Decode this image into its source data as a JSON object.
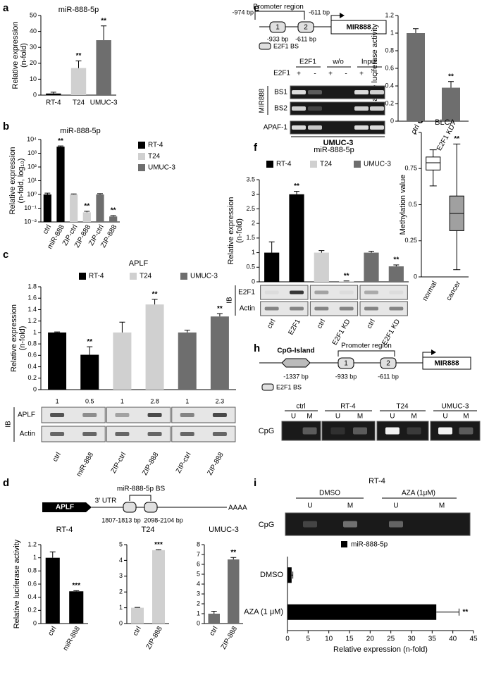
{
  "panels": [
    "a",
    "b",
    "c",
    "d",
    "e",
    "f",
    "g",
    "h",
    "i"
  ],
  "chart_data": [
    {
      "type": "bar",
      "title": "miR-888-5p",
      "ylabel": [
        "Relative expression",
        "(n-fold)"
      ],
      "categories": [
        "RT-4",
        "T24",
        "UMUC-3"
      ],
      "values": [
        1,
        17,
        34.5
      ],
      "errors": [
        0.8,
        4.5,
        9
      ],
      "significance": [
        null,
        "**",
        "**"
      ],
      "colors": [
        "#000000",
        "#d0d0d0",
        "#6e6e6e"
      ],
      "ylim": [
        0,
        50
      ],
      "yticks": [
        0,
        10,
        20,
        30,
        40,
        50
      ]
    },
    {
      "type": "bar",
      "title": "miR-888-5p",
      "ylabel": [
        "Relative expression",
        "(n-fold, log₁₀)"
      ],
      "log_scale": true,
      "categories": [
        "ctrl",
        "miR-888",
        "ZIP-ctrl",
        "ZIP-888",
        "ZIP-ctrl",
        "ZIP-888"
      ],
      "series": [
        {
          "name": "RT-4",
          "color": "#000000",
          "values": [
            1,
            3000,
            null,
            null,
            null,
            null
          ],
          "errors": [
            0.25,
            400,
            null,
            null,
            null,
            null
          ],
          "significance": [
            null,
            "**",
            null,
            null,
            null,
            null
          ]
        },
        {
          "name": "T24",
          "color": "#d0d0d0",
          "values": [
            null,
            null,
            1,
            0.05,
            null,
            null
          ],
          "errors": [
            null,
            null,
            0.1,
            0.01,
            null,
            null
          ],
          "significance": [
            null,
            null,
            null,
            "**",
            null,
            null
          ]
        },
        {
          "name": "UMUC-3",
          "color": "#6e6e6e",
          "values": [
            null,
            null,
            null,
            null,
            1,
            0.025
          ],
          "errors": [
            null,
            null,
            null,
            null,
            0.15,
            0.004
          ],
          "significance": [
            null,
            null,
            null,
            null,
            null,
            "**"
          ]
        }
      ],
      "ylim": [
        0.01,
        10000
      ],
      "yticks": [
        {
          "value": 0.01,
          "label": "10⁻²"
        },
        {
          "value": 0.1,
          "label": "10⁻¹"
        },
        {
          "value": 1,
          "label": "10⁰"
        },
        {
          "value": 10,
          "label": "10¹"
        },
        {
          "value": 100,
          "label": "10²"
        },
        {
          "value": 1000,
          "label": "10³"
        },
        {
          "value": 10000,
          "label": "10⁴"
        }
      ]
    },
    {
      "type": "bar",
      "title": "APLF",
      "ylabel": [
        "Relative expression",
        "(n-fold)"
      ],
      "categories": [
        "ctrl",
        "miR-888",
        "ZIP-ctrl",
        "ZIP-888",
        "ZIP-ctrl",
        "ZIP-888"
      ],
      "series": [
        {
          "name": "RT-4",
          "color": "#000000",
          "values": [
            1,
            0.61,
            null,
            null,
            null,
            null
          ],
          "errors": [
            0.01,
            0.14,
            null,
            null,
            null,
            null
          ],
          "significance": [
            null,
            "**",
            null,
            null,
            null,
            null
          ]
        },
        {
          "name": "T24",
          "color": "#d0d0d0",
          "values": [
            null,
            null,
            1,
            1.49,
            null,
            null
          ],
          "errors": [
            null,
            null,
            0.18,
            0.09,
            null,
            null
          ],
          "significance": [
            null,
            null,
            null,
            "**",
            null,
            null
          ]
        },
        {
          "name": "UMUC-3",
          "color": "#6e6e6e",
          "values": [
            null,
            null,
            null,
            null,
            1,
            1.28
          ],
          "errors": [
            null,
            null,
            null,
            null,
            0.04,
            0.05
          ],
          "significance": [
            null,
            null,
            null,
            null,
            null,
            "**"
          ]
        }
      ],
      "ylim": [
        0,
        1.8
      ],
      "yticks": [
        0,
        0.2,
        0.4,
        0.6,
        0.8,
        1,
        1.2,
        1.4,
        1.6,
        1.8
      ]
    },
    {
      "type": "bar",
      "title": "RT-4",
      "ylabel": [
        "Relative luciferase activity"
      ],
      "categories": [
        "ctrl",
        "miR-888"
      ],
      "values": [
        1,
        0.49
      ],
      "errors": [
        0.09,
        0.01
      ],
      "significance": [
        null,
        "***"
      ],
      "color": "#000000",
      "ylim": [
        0,
        1.2
      ],
      "yticks": [
        0,
        0.2,
        0.4,
        0.6,
        0.8,
        1,
        1.2
      ]
    },
    {
      "type": "bar",
      "title": "T24",
      "categories": [
        "ctrl",
        "ZIP-888"
      ],
      "values": [
        1,
        4.65
      ],
      "errors": [
        0.02,
        0.03
      ],
      "significance": [
        null,
        "***"
      ],
      "color": "#d0d0d0",
      "ylim": [
        0,
        5
      ],
      "yticks": [
        0,
        1,
        2,
        3,
        4,
        5
      ]
    },
    {
      "type": "bar",
      "title": "UMUC-3",
      "categories": [
        "ctrl",
        "ZIP-888"
      ],
      "values": [
        1,
        6.5
      ],
      "errors": [
        0.25,
        0.2
      ],
      "significance": [
        null,
        "**"
      ],
      "color": "#6e6e6e",
      "ylim": [
        0,
        8
      ],
      "yticks": [
        0,
        1,
        2,
        3,
        4,
        5,
        6,
        7,
        8
      ]
    },
    {
      "type": "bar",
      "ylabel": [
        "Relative luciferase activity"
      ],
      "categories": [
        "ctrl",
        "E2F1 KD"
      ],
      "values": [
        1,
        0.38
      ],
      "errors": [
        0.05,
        0.07
      ],
      "significance": [
        null,
        "**"
      ],
      "color": "#6e6e6e",
      "ylim": [
        0,
        1.2
      ],
      "yticks": [
        0,
        0.2,
        0.4,
        0.6,
        0.8,
        1,
        1.2
      ]
    },
    {
      "type": "bar",
      "title": "miR-888-5p",
      "ylabel": [
        "Relative expression",
        "(n-fold)"
      ],
      "categories": [
        "ctrl",
        "E2F1",
        "ctrl",
        "E2F1 KD",
        "ctrl",
        "E2F1 KD"
      ],
      "series": [
        {
          "name": "RT-4",
          "color": "#000000",
          "values": [
            1,
            3.0,
            null,
            null,
            null,
            null
          ],
          "errors": [
            0.37,
            0.1,
            null,
            null,
            null,
            null
          ],
          "significance": [
            null,
            "**",
            null,
            null,
            null,
            null
          ]
        },
        {
          "name": "T24",
          "color": "#d0d0d0",
          "values": [
            null,
            null,
            1,
            0.02,
            null,
            null
          ],
          "errors": [
            null,
            null,
            0.07,
            0.01,
            null,
            null
          ],
          "significance": [
            null,
            null,
            null,
            "**",
            null,
            null
          ]
        },
        {
          "name": "UMUC-3",
          "color": "#6e6e6e",
          "values": [
            null,
            null,
            null,
            null,
            1,
            0.53
          ],
          "errors": [
            null,
            null,
            null,
            null,
            0.05,
            0.05
          ],
          "significance": [
            null,
            null,
            null,
            null,
            null,
            "**"
          ]
        }
      ],
      "ylim": [
        0,
        3.5
      ],
      "yticks": [
        0,
        0.5,
        1,
        1.5,
        2,
        2.5,
        3,
        3.5
      ]
    },
    {
      "type": "box",
      "title": "BLCA",
      "ylabel": [
        "Methylation value"
      ],
      "categories": [
        "normal",
        "cancer"
      ],
      "boxes": [
        {
          "min": 0.63,
          "q1": 0.74,
          "median": 0.79,
          "q3": 0.83,
          "max": 0.88,
          "color": "#ffffff"
        },
        {
          "min": 0.05,
          "q1": 0.32,
          "median": 0.44,
          "q3": 0.56,
          "max": 0.92,
          "color": "#a0a0a0"
        }
      ],
      "significance": [
        null,
        "**"
      ],
      "ylim": [
        0,
        1
      ],
      "yticks": [
        0,
        0.25,
        0.5,
        0.75,
        1
      ]
    },
    {
      "type": "hbar",
      "xlabel": "Relative expression (n-fold)",
      "categories": [
        "DMSO",
        "AZA (1 μM)"
      ],
      "series": [
        {
          "name": "miR-888-5p",
          "color": "#000000",
          "values": [
            1,
            36
          ],
          "errors": [
            0.3,
            5.5
          ],
          "significance": [
            null,
            "**"
          ]
        }
      ],
      "xlim": [
        0,
        45
      ],
      "xticks": [
        0,
        5,
        10,
        15,
        20,
        25,
        30,
        35,
        40,
        45
      ]
    }
  ],
  "blot_c": {
    "method": "IB",
    "rows": [
      "APLF",
      "Actin"
    ],
    "quant": [
      1,
      0.5,
      1,
      2.8,
      1,
      2.3
    ]
  },
  "diagram_d": {
    "gene": "APLF",
    "utr": "3' UTR",
    "site": "miR-888-5p BS",
    "positions": [
      "1807-1813 bp",
      "2098-2104 bp"
    ],
    "tail": "AAAA"
  },
  "diagram_e": {
    "start": "-974 bp",
    "region": "Promoter region",
    "end": "-611 bp",
    "sites": [
      "1",
      "2"
    ],
    "site_positions": [
      "-933 bp",
      "-611 bp"
    ],
    "gene": "MIR888",
    "key": "E2F1 BS"
  },
  "chip_e": {
    "groups": [
      "E2F1",
      "w/o",
      "Input"
    ],
    "row_label": "E2F1",
    "signs": [
      "+",
      "-",
      "+",
      "-",
      "+",
      "-"
    ],
    "target": "MIR888",
    "rows": [
      "BS1",
      "BS2",
      "APAF-1"
    ],
    "cell": "UMUC-3"
  },
  "blot_f": {
    "method": "IB",
    "rows": [
      "E2F1",
      "Actin"
    ]
  },
  "diagram_h": {
    "island": "CpG-Island",
    "region": "Promoter region",
    "island_position": "-1337 bp",
    "sites": [
      "1",
      "2"
    ],
    "site_positions": [
      "-933 bp",
      "-611 bp"
    ],
    "gene": "MIR888",
    "key": "E2F1 BS"
  },
  "msp_h": {
    "groups": [
      "ctrl",
      "RT-4",
      "T24",
      "UMUC-3"
    ],
    "lanes": [
      "U",
      "M",
      "U",
      "M",
      "U",
      "M",
      "U",
      "M"
    ],
    "row": "CpG"
  },
  "msp_i": {
    "title": "RT-4",
    "groups": [
      "DMSO",
      "AZA (1μM)"
    ],
    "lanes": [
      "U",
      "M",
      "U",
      "M"
    ],
    "row": "CpG"
  }
}
